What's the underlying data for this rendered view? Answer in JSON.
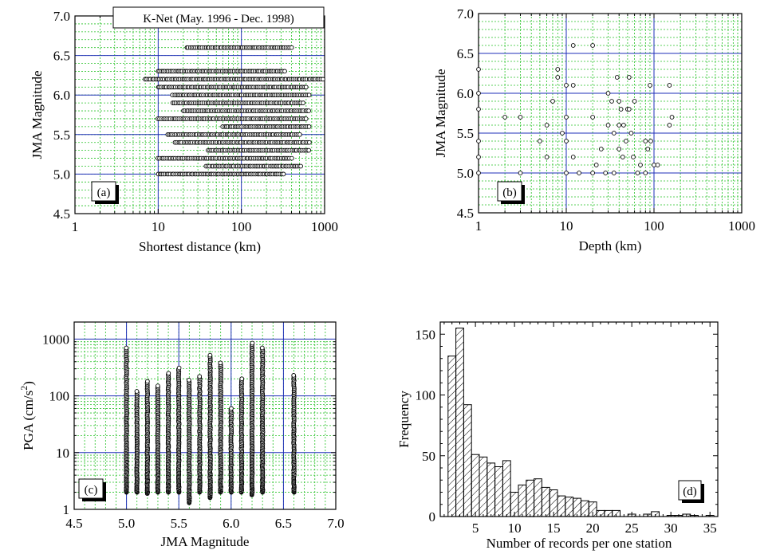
{
  "colors": {
    "major_grid": "#1f2fb8",
    "minor_grid": "#27c227",
    "frame": "#000000",
    "marker": "#000000"
  },
  "chart_data": [
    {
      "id": "a",
      "type": "scatter",
      "title": "K-Net (May. 1996 - Dec. 1998)",
      "panel_label": "(a)",
      "xlabel": "Shortest distance (km)",
      "ylabel": "JMA Magnitude",
      "xscale": "log",
      "xlim": [
        1,
        1000
      ],
      "ylim": [
        4.5,
        7.0
      ],
      "xticks": [
        "1",
        "10",
        "100",
        "1000"
      ],
      "yticks": [
        "4.5",
        "5.0",
        "5.5",
        "6.0",
        "6.5",
        "7.0"
      ],
      "grid": true,
      "rows": [
        {
          "y": 5.0,
          "xmin": 10,
          "xmax": 320
        },
        {
          "y": 5.1,
          "xmin": 38,
          "xmax": 520
        },
        {
          "y": 5.2,
          "xmin": 10,
          "xmax": 400
        },
        {
          "y": 5.3,
          "xmin": 40,
          "xmax": 650
        },
        {
          "y": 5.4,
          "xmin": 16,
          "xmax": 650
        },
        {
          "y": 5.5,
          "xmin": 13,
          "xmax": 500
        },
        {
          "y": 5.6,
          "xmin": 60,
          "xmax": 650
        },
        {
          "y": 5.7,
          "xmin": 10,
          "xmax": 600
        },
        {
          "y": 5.8,
          "xmin": 20,
          "xmax": 650
        },
        {
          "y": 5.9,
          "xmin": 15,
          "xmax": 550
        },
        {
          "y": 6.0,
          "xmin": 15,
          "xmax": 650
        },
        {
          "y": 6.1,
          "xmin": 10,
          "xmax": 600
        },
        {
          "y": 6.2,
          "xmin": 7,
          "xmax": 950
        },
        {
          "y": 6.3,
          "xmin": 10,
          "xmax": 330
        },
        {
          "y": 6.6,
          "xmin": 22,
          "xmax": 400
        }
      ]
    },
    {
      "id": "b",
      "type": "scatter",
      "panel_label": "(b)",
      "xlabel": "Depth (km)",
      "ylabel": "JMA Magnitude",
      "xscale": "log",
      "xlim": [
        1,
        1000
      ],
      "ylim": [
        4.5,
        7.0
      ],
      "xticks": [
        "1",
        "10",
        "100",
        "1000"
      ],
      "yticks": [
        "4.5",
        "5.0",
        "5.5",
        "6.0",
        "6.5",
        "7.0"
      ],
      "grid": true,
      "points": [
        [
          1,
          6.3
        ],
        [
          1,
          6.0
        ],
        [
          1,
          5.8
        ],
        [
          1,
          5.4
        ],
        [
          1,
          5.2
        ],
        [
          1,
          5.0
        ],
        [
          2,
          5.7
        ],
        [
          3,
          5.7
        ],
        [
          3,
          5.0
        ],
        [
          5,
          5.4
        ],
        [
          6,
          5.6
        ],
        [
          6,
          5.2
        ],
        [
          7,
          5.9
        ],
        [
          8,
          6.3
        ],
        [
          8,
          6.2
        ],
        [
          9,
          5.5
        ],
        [
          10,
          6.1
        ],
        [
          10,
          5.7
        ],
        [
          10,
          5.4
        ],
        [
          10,
          5.0
        ],
        [
          12,
          6.6
        ],
        [
          12,
          6.1
        ],
        [
          12,
          5.2
        ],
        [
          14,
          5.0
        ],
        [
          20,
          6.6
        ],
        [
          20,
          5.7
        ],
        [
          20,
          5.0
        ],
        [
          22,
          5.1
        ],
        [
          25,
          5.3
        ],
        [
          28,
          5.0
        ],
        [
          30,
          6.0
        ],
        [
          30,
          5.6
        ],
        [
          33,
          5.9
        ],
        [
          35,
          5.5
        ],
        [
          35,
          5.0
        ],
        [
          38,
          6.2
        ],
        [
          40,
          5.9
        ],
        [
          40,
          5.6
        ],
        [
          40,
          5.3
        ],
        [
          42,
          5.8
        ],
        [
          44,
          5.2
        ],
        [
          45,
          5.6
        ],
        [
          48,
          5.4
        ],
        [
          50,
          5.8
        ],
        [
          52,
          6.2
        ],
        [
          52,
          5.8
        ],
        [
          55,
          5.5
        ],
        [
          58,
          5.2
        ],
        [
          60,
          5.9
        ],
        [
          65,
          5.0
        ],
        [
          70,
          5.1
        ],
        [
          80,
          5.4
        ],
        [
          80,
          5.0
        ],
        [
          85,
          5.3
        ],
        [
          90,
          6.1
        ],
        [
          92,
          5.4
        ],
        [
          100,
          5.1
        ],
        [
          110,
          5.1
        ],
        [
          150,
          6.1
        ],
        [
          150,
          5.6
        ],
        [
          160,
          5.7
        ]
      ]
    },
    {
      "id": "c",
      "type": "scatter",
      "panel_label": "(c)",
      "xlabel": "JMA Magnitude",
      "ylabel": "PGA (cm/s²)",
      "ylabel_main": "PGA (cm/s",
      "ylabel_sup": "2",
      "ylabel_end": ")",
      "yscale": "log",
      "xlim": [
        4.5,
        7.0
      ],
      "ylim": [
        1,
        2000
      ],
      "xticks": [
        "4.5",
        "5.0",
        "5.5",
        "6.0",
        "6.5",
        "7.0"
      ],
      "yticks": [
        "1",
        "10",
        "100",
        "1000"
      ],
      "grid": true,
      "columns": [
        {
          "x": 5.0,
          "ymin": 2.0,
          "ymax": 700
        },
        {
          "x": 5.1,
          "ymin": 2.0,
          "ymax": 120
        },
        {
          "x": 5.2,
          "ymin": 1.9,
          "ymax": 180
        },
        {
          "x": 5.3,
          "ymin": 2.0,
          "ymax": 150
        },
        {
          "x": 5.4,
          "ymin": 2.0,
          "ymax": 250
        },
        {
          "x": 5.5,
          "ymin": 2.0,
          "ymax": 310
        },
        {
          "x": 5.6,
          "ymin": 1.3,
          "ymax": 190
        },
        {
          "x": 5.7,
          "ymin": 2.0,
          "ymax": 220
        },
        {
          "x": 5.8,
          "ymin": 1.6,
          "ymax": 520
        },
        {
          "x": 5.9,
          "ymin": 2.0,
          "ymax": 380
        },
        {
          "x": 6.0,
          "ymin": 2.0,
          "ymax": 60
        },
        {
          "x": 6.1,
          "ymin": 2.0,
          "ymax": 200
        },
        {
          "x": 6.2,
          "ymin": 1.8,
          "ymax": 850
        },
        {
          "x": 6.3,
          "ymin": 2.0,
          "ymax": 700
        },
        {
          "x": 6.6,
          "ymin": 2.0,
          "ymax": 230
        }
      ]
    },
    {
      "id": "d",
      "type": "bar",
      "panel_label": "(d)",
      "xlabel": "Number of records per one station",
      "ylabel": "Frequency",
      "xlim": [
        0.5,
        36
      ],
      "ylim": [
        0,
        160
      ],
      "xticks": [
        "5",
        "10",
        "15",
        "20",
        "25",
        "30",
        "35"
      ],
      "yticks": [
        "0",
        "50",
        "100",
        "150"
      ],
      "hatch": "diagonal",
      "categories": [
        2,
        3,
        4,
        5,
        6,
        7,
        8,
        9,
        10,
        11,
        12,
        13,
        14,
        15,
        16,
        17,
        18,
        19,
        20,
        21,
        22,
        23,
        24,
        25,
        26,
        27,
        28,
        29,
        30,
        31,
        32,
        33,
        34,
        35
      ],
      "values": [
        132,
        155,
        92,
        51,
        49,
        44,
        41,
        46,
        20,
        26,
        30,
        31,
        24,
        22,
        17,
        16,
        15,
        13,
        12,
        5,
        5,
        5,
        0,
        2,
        0,
        2,
        4,
        0,
        1,
        1,
        2,
        1,
        0,
        1
      ]
    }
  ]
}
